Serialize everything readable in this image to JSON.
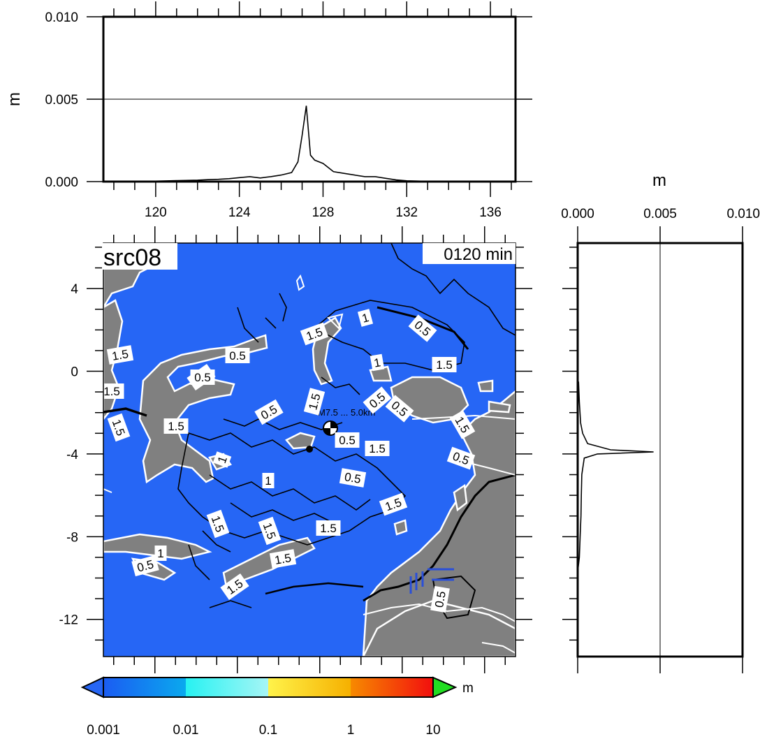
{
  "source_label": "src08",
  "time_label": "0120 min",
  "top_panel": {
    "ylabel": "m",
    "yticks": [
      "0.000",
      "0.005",
      "0.010"
    ],
    "xticks": [
      "120",
      "124",
      "128",
      "132",
      "136"
    ],
    "x_range": [
      117.5,
      137.2
    ],
    "y_range": [
      0,
      0.01
    ],
    "grid_line": 0.005
  },
  "right_panel": {
    "xlabel": "m",
    "xticks": [
      "0.000",
      "0.005",
      "0.010"
    ],
    "x_range": [
      0,
      0.01
    ],
    "grid_line": 0.005
  },
  "map": {
    "lon_range": [
      117.5,
      137.5
    ],
    "lat_range": [
      -13.8,
      6.2
    ],
    "yticks": [
      "4",
      "0",
      "-4",
      "-8",
      "-12"
    ],
    "ocean_color": "#2666f5",
    "land_color": "#808080",
    "epicenter_label": "M7.5 ... 5.0km",
    "contour_labels": [
      "1.5",
      "1",
      "0.5",
      "1.5",
      "0.5",
      "1",
      "1.5",
      "1.5",
      "1.5",
      "1.5",
      "1.5",
      "0.5",
      "1.5",
      "0.5",
      "0.5",
      "1.5",
      "0.5",
      "1.5",
      "0.5",
      "1",
      "1",
      "0.5",
      "1.5",
      "1.5",
      "1.5",
      "1.5",
      "1",
      "0.5",
      "1.5",
      "1.5",
      "0.5",
      "0.5"
    ]
  },
  "colorbar": {
    "unit": "m",
    "labels": [
      "0.001",
      "0.01",
      "0.1",
      "1",
      "10"
    ],
    "colors": {
      "under": "#2666f5",
      "over": "#22dd22"
    }
  },
  "chart_data": [
    {
      "type": "line",
      "title": "",
      "xlabel": "",
      "ylabel": "m",
      "xlim": [
        117.5,
        137.2
      ],
      "ylim": [
        0,
        0.01
      ],
      "series": [
        {
          "x": [
            120,
            121,
            122,
            122.5,
            123,
            123.5,
            124,
            124.5,
            125,
            125.5,
            126,
            126.5,
            126.8,
            127.0,
            127.2,
            127.4,
            127.6,
            128,
            128.5,
            129,
            129.5,
            130,
            130.5,
            131,
            131.5,
            132,
            133
          ],
          "values": [
            3e-05,
            6e-05,
            9e-05,
            0.00012,
            0.00014,
            0.00018,
            0.00024,
            0.0003,
            0.00022,
            0.0003,
            0.0004,
            0.00055,
            0.0012,
            0.0028,
            0.0046,
            0.0016,
            0.0013,
            0.0011,
            0.0006,
            0.0005,
            0.0004,
            0.0003,
            0.0003,
            0.0002,
            0.0001,
            5e-05,
            2e-05
          ]
        }
      ]
    },
    {
      "type": "line",
      "title": "",
      "xlabel": "m",
      "ylabel": "",
      "xlim": [
        0,
        0.01
      ],
      "ylim": [
        -13.8,
        6.2
      ],
      "series": [
        {
          "y": [
            -0.5,
            -1.5,
            -2.5,
            -3.0,
            -3.5,
            -3.8,
            -3.9,
            -4.0,
            -4.2,
            -5.0,
            -6.0,
            -7.0,
            -8.0,
            -9.0,
            -9.5
          ],
          "values": [
            5e-05,
            0.0001,
            0.00018,
            0.0003,
            0.0006,
            0.002,
            0.0046,
            0.0012,
            0.0004,
            0.00025,
            0.00022,
            0.0002,
            0.00015,
            0.0001,
            3e-05
          ]
        }
      ]
    }
  ]
}
